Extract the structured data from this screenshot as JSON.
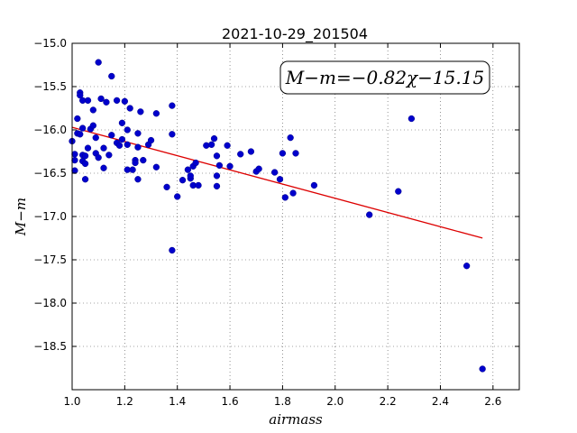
{
  "chart_data": {
    "type": "scatter",
    "title": "2021-10-29_201504",
    "xlabel": "airmass",
    "ylabel": "M−m",
    "xlim": [
      1.0,
      2.7
    ],
    "ylim": [
      -19.0,
      -15.0
    ],
    "y_inverted": true,
    "xticks": [
      "1.0",
      "1.2",
      "1.4",
      "1.6",
      "1.8",
      "2.0",
      "2.2",
      "2.4",
      "2.6"
    ],
    "yticks": [
      "−15.0",
      "−15.5",
      "−16.0",
      "−16.5",
      "−17.0",
      "−17.5",
      "−18.0",
      "−18.5"
    ],
    "grid": true,
    "annotation": "M−m=−0.82χ−15.15",
    "fit": {
      "slope": -0.82,
      "intercept": -15.15,
      "x_range": [
        1.0,
        2.56
      ],
      "color": "#dd0000"
    },
    "point_color": "#0000cc",
    "points": [
      [
        1.0,
        -16.13
      ],
      [
        1.01,
        -16.28
      ],
      [
        1.01,
        -16.35
      ],
      [
        1.01,
        -16.47
      ],
      [
        1.02,
        -15.87
      ],
      [
        1.02,
        -16.04
      ],
      [
        1.03,
        -15.57
      ],
      [
        1.03,
        -15.6
      ],
      [
        1.03,
        -16.05
      ],
      [
        1.04,
        -15.66
      ],
      [
        1.04,
        -15.98
      ],
      [
        1.04,
        -16.29
      ],
      [
        1.04,
        -16.36
      ],
      [
        1.05,
        -16.3
      ],
      [
        1.05,
        -16.39
      ],
      [
        1.05,
        -16.57
      ],
      [
        1.06,
        -15.66
      ],
      [
        1.06,
        -16.21
      ],
      [
        1.07,
        -15.99
      ],
      [
        1.08,
        -15.77
      ],
      [
        1.08,
        -15.95
      ],
      [
        1.09,
        -16.09
      ],
      [
        1.09,
        -16.27
      ],
      [
        1.1,
        -15.22
      ],
      [
        1.1,
        -16.32
      ],
      [
        1.11,
        -15.64
      ],
      [
        1.12,
        -16.21
      ],
      [
        1.12,
        -16.44
      ],
      [
        1.13,
        -15.68
      ],
      [
        1.14,
        -16.29
      ],
      [
        1.15,
        -15.38
      ],
      [
        1.15,
        -16.06
      ],
      [
        1.17,
        -15.66
      ],
      [
        1.17,
        -16.15
      ],
      [
        1.18,
        -16.18
      ],
      [
        1.19,
        -15.92
      ],
      [
        1.19,
        -16.11
      ],
      [
        1.2,
        -15.67
      ],
      [
        1.21,
        -16.0
      ],
      [
        1.21,
        -16.17
      ],
      [
        1.21,
        -16.46
      ],
      [
        1.22,
        -15.75
      ],
      [
        1.23,
        -16.46
      ],
      [
        1.24,
        -16.35
      ],
      [
        1.24,
        -16.38
      ],
      [
        1.25,
        -16.04
      ],
      [
        1.25,
        -16.2
      ],
      [
        1.25,
        -16.57
      ],
      [
        1.26,
        -15.79
      ],
      [
        1.27,
        -16.35
      ],
      [
        1.29,
        -16.17
      ],
      [
        1.3,
        -16.12
      ],
      [
        1.32,
        -15.81
      ],
      [
        1.32,
        -16.43
      ],
      [
        1.36,
        -16.66
      ],
      [
        1.38,
        -16.05
      ],
      [
        1.38,
        -17.39
      ],
      [
        1.38,
        -15.72
      ],
      [
        1.4,
        -16.77
      ],
      [
        1.42,
        -16.58
      ],
      [
        1.44,
        -16.46
      ],
      [
        1.45,
        -16.56
      ],
      [
        1.45,
        -16.53
      ],
      [
        1.46,
        -16.42
      ],
      [
        1.46,
        -16.64
      ],
      [
        1.47,
        -16.38
      ],
      [
        1.48,
        -16.64
      ],
      [
        1.51,
        -16.18
      ],
      [
        1.53,
        -16.17
      ],
      [
        1.54,
        -16.1
      ],
      [
        1.55,
        -16.3
      ],
      [
        1.55,
        -16.53
      ],
      [
        1.56,
        -16.41
      ],
      [
        1.55,
        -16.65
      ],
      [
        1.59,
        -16.18
      ],
      [
        1.6,
        -16.42
      ],
      [
        1.64,
        -16.28
      ],
      [
        1.68,
        -16.25
      ],
      [
        1.7,
        -16.48
      ],
      [
        1.71,
        -16.45
      ],
      [
        1.77,
        -16.49
      ],
      [
        1.79,
        -16.57
      ],
      [
        1.8,
        -16.27
      ],
      [
        1.81,
        -16.78
      ],
      [
        1.83,
        -16.09
      ],
      [
        1.84,
        -16.73
      ],
      [
        1.85,
        -16.27
      ],
      [
        1.92,
        -16.64
      ],
      [
        2.13,
        -16.98
      ],
      [
        2.24,
        -16.71
      ],
      [
        2.29,
        -15.87
      ],
      [
        2.5,
        -17.57
      ],
      [
        2.56,
        -18.76
      ]
    ]
  }
}
